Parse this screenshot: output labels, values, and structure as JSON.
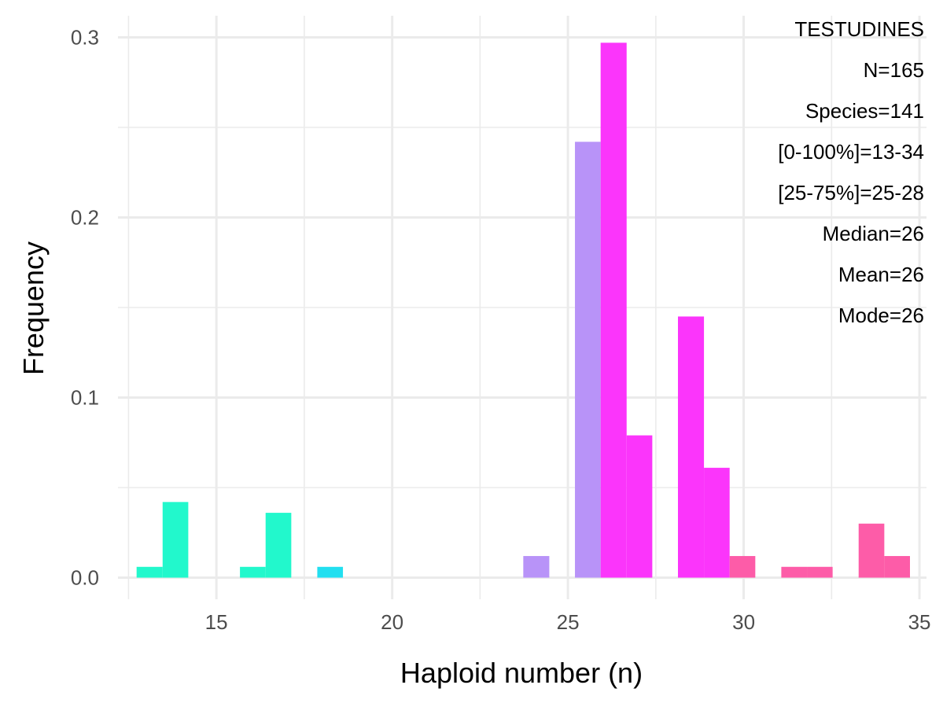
{
  "chart_data": {
    "type": "bar",
    "subtype": "histogram",
    "xlabel": "Haploid number (n)",
    "ylabel": "Frequency",
    "xlim": [
      12.2,
      35.2
    ],
    "ylim": [
      -0.012,
      0.312
    ],
    "x_ticks": [
      15,
      20,
      25,
      30,
      35
    ],
    "y_ticks": [
      0.0,
      0.1,
      0.2,
      0.3
    ],
    "y_tick_labels": [
      "0.0",
      "0.1",
      "0.2",
      "0.3"
    ],
    "grid": true,
    "legend": "none",
    "bin_width": 0.7333,
    "bins": [
      {
        "x_start": 12.73,
        "x_end": 13.47,
        "value": 0.006,
        "color": "#22f8cc"
      },
      {
        "x_start": 13.47,
        "x_end": 14.2,
        "value": 0.042,
        "color": "#22f8cc"
      },
      {
        "x_start": 15.67,
        "x_end": 16.4,
        "value": 0.006,
        "color": "#22f8cc"
      },
      {
        "x_start": 16.4,
        "x_end": 17.13,
        "value": 0.036,
        "color": "#22f8cc"
      },
      {
        "x_start": 17.87,
        "x_end": 18.6,
        "value": 0.006,
        "color": "#22dff0"
      },
      {
        "x_start": 23.73,
        "x_end": 24.47,
        "value": 0.012,
        "color": "#b893f8"
      },
      {
        "x_start": 25.2,
        "x_end": 25.93,
        "value": 0.242,
        "color": "#b893f8"
      },
      {
        "x_start": 25.93,
        "x_end": 26.67,
        "value": 0.297,
        "color": "#fb35fb"
      },
      {
        "x_start": 26.67,
        "x_end": 27.4,
        "value": 0.079,
        "color": "#fb35fb"
      },
      {
        "x_start": 28.13,
        "x_end": 28.87,
        "value": 0.145,
        "color": "#fb35fb"
      },
      {
        "x_start": 28.87,
        "x_end": 29.6,
        "value": 0.061,
        "color": "#fb35fb"
      },
      {
        "x_start": 29.6,
        "x_end": 30.33,
        "value": 0.012,
        "color": "#fd5ca8"
      },
      {
        "x_start": 31.07,
        "x_end": 31.8,
        "value": 0.006,
        "color": "#fd5ca8"
      },
      {
        "x_start": 31.8,
        "x_end": 32.53,
        "value": 0.006,
        "color": "#fd5ca8"
      },
      {
        "x_start": 33.27,
        "x_end": 34.0,
        "value": 0.03,
        "color": "#fd5ca8"
      },
      {
        "x_start": 34.0,
        "x_end": 34.73,
        "value": 0.012,
        "color": "#fd5ca8"
      }
    ],
    "annotations": [
      "TESTUDINES",
      "N=165",
      "Species=141",
      "[0-100%]=13-34",
      "[25-75%]=25-28",
      "Median=26",
      "Mean=26",
      "Mode=26"
    ]
  }
}
